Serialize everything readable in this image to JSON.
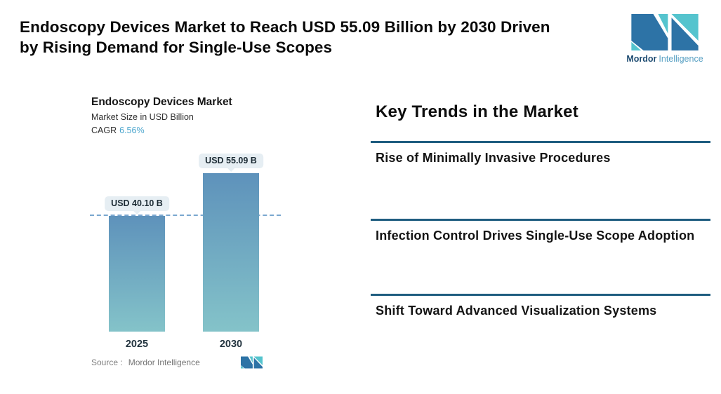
{
  "theme": {
    "divider-color": "#1f5d80",
    "bar-top": "#5e92bb",
    "bar-bottom": "#84c3c9",
    "dash-color": "#7aa7cf",
    "pill-bg": "#e6eef3",
    "accent-blue": "#4aa5cd",
    "logo-dark": "#2d73a6",
    "logo-teal": "#55c4ce",
    "logo-text-dark": "#1d4b71",
    "logo-text-light": "#58a0c3"
  },
  "header": {
    "title_lines": [
      "Endoscopy Devices Market to Reach USD 55.09 Billion by 2030 Driven",
      "by Rising Demand for Single-Use Scopes"
    ],
    "logo": {
      "brand_bold": "Mordor",
      "brand_light": "Intelligence"
    }
  },
  "chart": {
    "title": "Endoscopy Devices Market",
    "subtitle": "Market Size in USD Billion",
    "cagr_label": "CAGR",
    "cagr_value": "6.56%",
    "source_label": "Source :",
    "source_value": "Mordor Intelligence"
  },
  "chart_data": {
    "type": "bar",
    "categories": [
      "2025",
      "2030"
    ],
    "values": [
      40.1,
      55.09
    ],
    "data_labels": [
      "USD 40.10 B",
      "USD 55.09 B"
    ],
    "title": "Endoscopy Devices Market",
    "ylabel": "Market Size in USD Billion",
    "xlabel": "",
    "ylim": [
      0,
      55.09
    ],
    "cagr": "6.56%",
    "reference_line": {
      "value": 40.1,
      "style": "dashed"
    },
    "legend": false,
    "grid": false,
    "bar_gradient": [
      "#5e92bb",
      "#84c3c9"
    ]
  },
  "trends": {
    "heading": "Key Trends in the Market",
    "items": [
      "Rise of Minimally Invasive Procedures",
      "Infection Control Drives Single-Use Scope Adoption",
      "Shift Toward Advanced Visualization Systems"
    ]
  }
}
